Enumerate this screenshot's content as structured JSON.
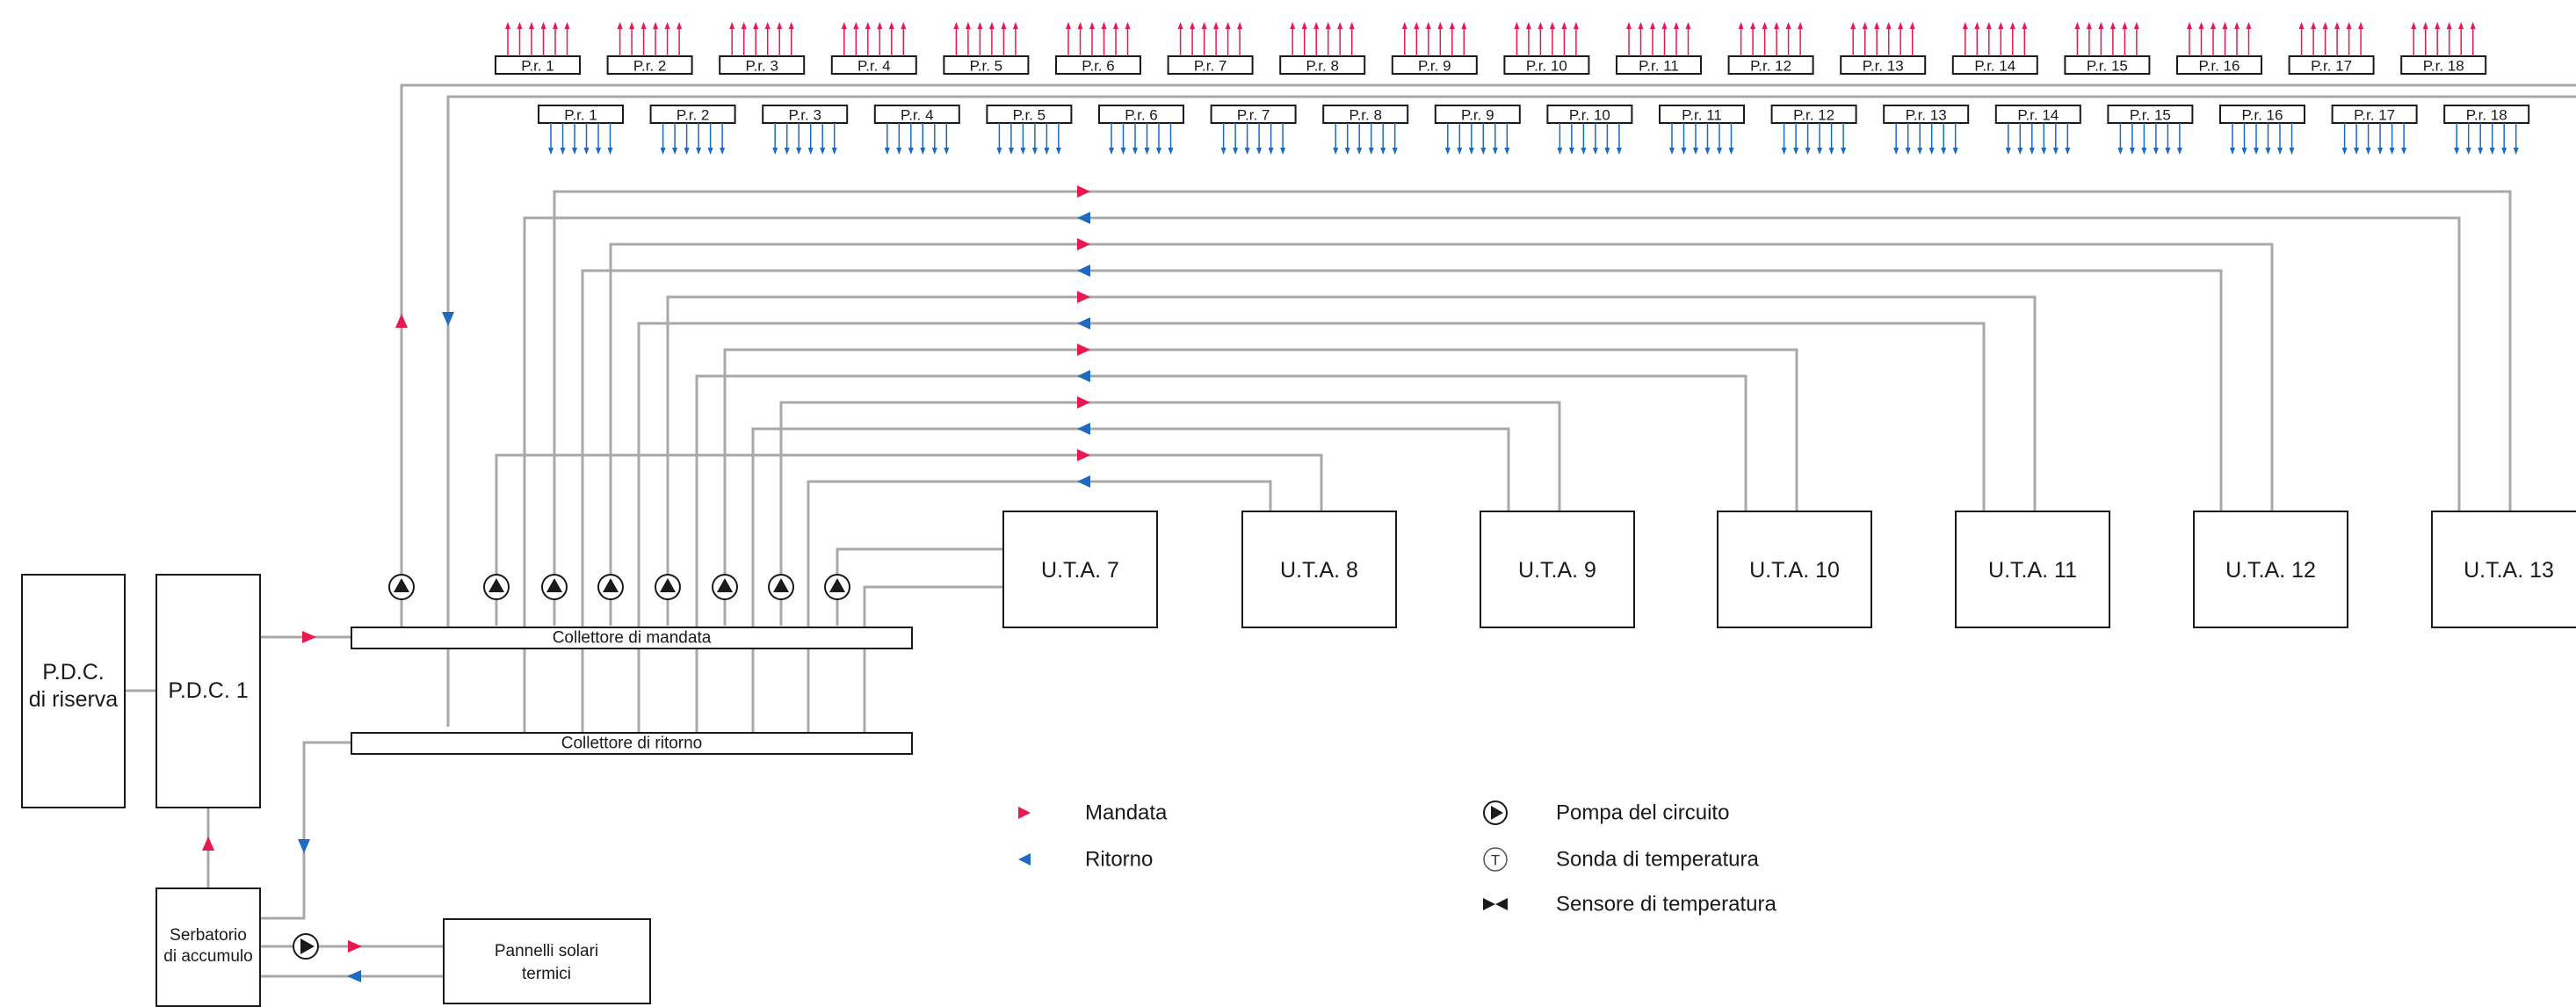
{
  "colors": {
    "supply": "#e8194f",
    "return": "#1f6ac0",
    "pipe": "#a8a8a8",
    "outline": "#1a1a1a"
  },
  "units": {
    "pdc_riserva": [
      "P.D.C.",
      "di riserva"
    ],
    "pdc1": "P.D.C. 1",
    "serbatoio": [
      "Serbatorio",
      "di accumulo"
    ],
    "pannelli": [
      "Pannelli solari",
      "termici"
    ]
  },
  "collectors": {
    "supply_label": "Collettore di mandata",
    "return_label": "Collettore di ritorno"
  },
  "uta_labels": [
    "U.T.A. 7",
    "U.T.A. 8",
    "U.T.A. 9",
    "U.T.A. 10",
    "U.T.A. 11",
    "U.T.A. 12",
    "U.T.A. 13"
  ],
  "pr_labels": [
    "P.r. 1",
    "P.r. 2",
    "P.r. 3",
    "P.r. 4",
    "P.r. 5",
    "P.r. 6",
    "P.r. 7",
    "P.r. 8",
    "P.r. 9",
    "P.r. 10",
    "P.r. 11",
    "P.r. 12",
    "P.r. 13",
    "P.r. 14",
    "P.r. 15",
    "P.r. 16",
    "P.r. 17",
    "P.r. 18"
  ],
  "legend": {
    "mandata": "Mandata",
    "ritorno": "Ritorno",
    "pompa": "Pompa del circuito",
    "sonda": "Sonda di temperatura",
    "sensore": "Sensore di temperatura",
    "icons": [
      "pump-icon",
      "temperature-probe-icon",
      "temperature-sensor-icon"
    ]
  }
}
